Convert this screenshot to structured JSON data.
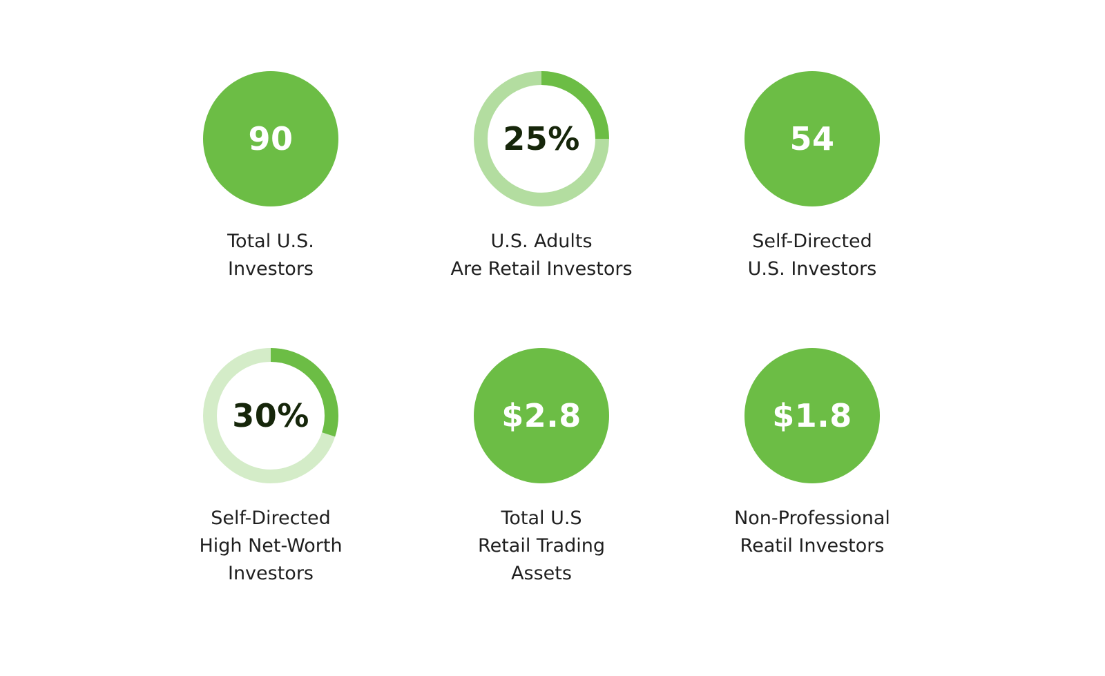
{
  "colors": {
    "accent": "#6cbd45",
    "ring_track_light": "#b3dda0",
    "ring_track_lighter": "#d4ecc8",
    "value_on_solid": "#ffffff",
    "value_on_ring": "#16260a",
    "label": "#1f1f1f"
  },
  "stats": [
    {
      "value": "90",
      "style": "solid",
      "label_lines": [
        "Total U.S.",
        "Investors"
      ]
    },
    {
      "value": "25%",
      "style": "ring",
      "progress": 0.25,
      "label_lines": [
        "U.S. Adults",
        "Are Retail Investors"
      ]
    },
    {
      "value": "54",
      "style": "solid",
      "label_lines": [
        "Self-Directed",
        "U.S. Investors"
      ]
    },
    {
      "value": "30%",
      "style": "ring",
      "progress": 0.3,
      "label_lines": [
        "Self-Directed",
        "High Net-Worth",
        "Investors"
      ]
    },
    {
      "value": "$2.8",
      "style": "solid",
      "label_lines": [
        "Total U.S",
        "Retail Trading",
        "Assets"
      ]
    },
    {
      "value": "$1.8",
      "style": "solid",
      "label_lines": [
        "Non-Professional",
        "Reatil Investors"
      ]
    }
  ]
}
